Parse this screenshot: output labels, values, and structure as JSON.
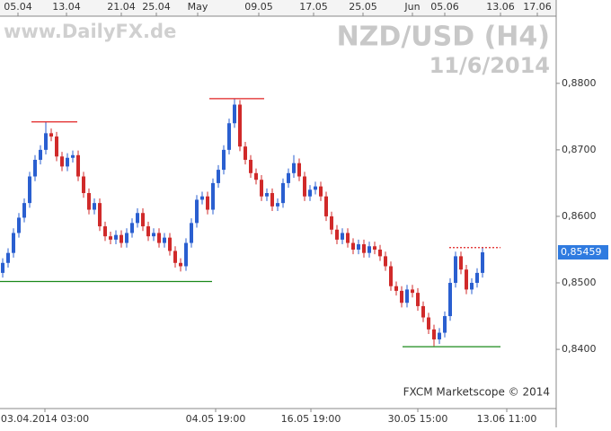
{
  "chart_data": {
    "type": "candlestick",
    "title": "NZD/USD (H4)",
    "subtitle": "11/6/2014",
    "watermark": "www.DailyFX.de",
    "footer": "FXCM Marketscope © 2014",
    "top_axis_labels": [
      "05.04",
      "13.04",
      "21.04",
      "25.04",
      "May",
      "09.05",
      "17.05",
      "25.05",
      "Jun",
      "05.06",
      "13.06",
      "17.06"
    ],
    "bottom_axis_labels": [
      "03.04.2014 03:00",
      "04.05 19:00",
      "16.05 19:00",
      "30.05 15:00",
      "13.06 11:00"
    ],
    "ylim": [
      0.8311,
      0.8901
    ],
    "yticks": [
      {
        "value": 0.88,
        "label": "0,8800"
      },
      {
        "value": 0.87,
        "label": "0,8700"
      },
      {
        "value": 0.86,
        "label": "0,8600"
      },
      {
        "value": 0.85,
        "label": "0,8500"
      },
      {
        "value": 0.84,
        "label": "0,8400"
      }
    ],
    "up_color": "#2a5fd0",
    "down_color": "#d02a2a",
    "last_price": {
      "value": 0.85459,
      "label": "0,85459",
      "color": "#2f7be0"
    },
    "levels": [
      {
        "value": 0.8742,
        "color": "#e02020",
        "style": "solid"
      },
      {
        "value": 0.8777,
        "color": "#e02020",
        "style": "solid"
      },
      {
        "value": 0.8502,
        "color": "#1a8a1a",
        "style": "solid"
      },
      {
        "value": 0.8404,
        "color": "#1a8a1a",
        "style": "solid"
      },
      {
        "value": 0.8553,
        "color": "#e02020",
        "style": "dotted"
      }
    ],
    "open": [
      0.8515,
      0.853,
      0.8545,
      0.8575,
      0.8598,
      0.862,
      0.866,
      0.8685,
      0.87,
      0.8725,
      0.872,
      0.869,
      0.8675,
      0.8688,
      0.8692,
      0.866,
      0.8635,
      0.861,
      0.862,
      0.8585,
      0.857,
      0.8565,
      0.8572,
      0.856,
      0.8575,
      0.859,
      0.8605,
      0.8585,
      0.857,
      0.8575,
      0.856,
      0.8568,
      0.8548,
      0.853,
      0.8525,
      0.856,
      0.859,
      0.8625,
      0.863,
      0.861,
      0.865,
      0.867,
      0.87,
      0.874,
      0.8768,
      0.8705,
      0.8685,
      0.8665,
      0.8655,
      0.863,
      0.8635,
      0.8615,
      0.862,
      0.865,
      0.8665,
      0.868,
      0.866,
      0.863,
      0.864,
      0.8645,
      0.863,
      0.86,
      0.858,
      0.8565,
      0.8575,
      0.856,
      0.855,
      0.8558,
      0.8545,
      0.8555,
      0.855,
      0.854,
      0.8525,
      0.8495,
      0.8488,
      0.847,
      0.849,
      0.8485,
      0.8465,
      0.8448,
      0.843,
      0.8415,
      0.8425,
      0.845,
      0.85,
      0.854,
      0.852,
      0.849,
      0.85,
      0.8515
    ],
    "high": [
      0.8537,
      0.8552,
      0.8582,
      0.8605,
      0.8627,
      0.8667,
      0.8692,
      0.8707,
      0.8742,
      0.8732,
      0.8727,
      0.8697,
      0.8695,
      0.8699,
      0.8699,
      0.8667,
      0.8642,
      0.8627,
      0.8627,
      0.8592,
      0.8577,
      0.8579,
      0.8579,
      0.8582,
      0.8597,
      0.8612,
      0.8612,
      0.8592,
      0.8582,
      0.8582,
      0.8575,
      0.8575,
      0.8555,
      0.8537,
      0.8567,
      0.8597,
      0.8632,
      0.8637,
      0.8637,
      0.8657,
      0.8677,
      0.8707,
      0.8747,
      0.8777,
      0.8775,
      0.8712,
      0.8692,
      0.8672,
      0.8662,
      0.8642,
      0.8642,
      0.8627,
      0.8657,
      0.8672,
      0.8692,
      0.8687,
      0.8667,
      0.8647,
      0.8652,
      0.8652,
      0.8637,
      0.8607,
      0.8587,
      0.8582,
      0.8582,
      0.8567,
      0.8565,
      0.8565,
      0.8562,
      0.8562,
      0.8557,
      0.8547,
      0.8532,
      0.8502,
      0.8495,
      0.8497,
      0.8497,
      0.8492,
      0.8472,
      0.8455,
      0.8437,
      0.8432,
      0.8457,
      0.8507,
      0.8547,
      0.8547,
      0.8527,
      0.8507,
      0.8522,
      0.8553
    ],
    "low": [
      0.8508,
      0.8523,
      0.8538,
      0.8568,
      0.8591,
      0.8613,
      0.8653,
      0.8678,
      0.8693,
      0.8713,
      0.8683,
      0.8668,
      0.8668,
      0.8681,
      0.8653,
      0.8628,
      0.8603,
      0.8603,
      0.8578,
      0.8563,
      0.8558,
      0.8558,
      0.8553,
      0.8553,
      0.8568,
      0.8583,
      0.8578,
      0.8563,
      0.8563,
      0.8553,
      0.8553,
      0.8541,
      0.8523,
      0.8517,
      0.8518,
      0.8553,
      0.8583,
      0.8618,
      0.8603,
      0.8603,
      0.8643,
      0.8663,
      0.8693,
      0.8733,
      0.8698,
      0.8678,
      0.8658,
      0.8648,
      0.8623,
      0.8623,
      0.8608,
      0.8608,
      0.8613,
      0.8643,
      0.8658,
      0.8653,
      0.8623,
      0.8623,
      0.8633,
      0.8623,
      0.8593,
      0.8573,
      0.8558,
      0.8558,
      0.8553,
      0.8543,
      0.8543,
      0.8538,
      0.8538,
      0.8543,
      0.8533,
      0.8518,
      0.8488,
      0.8481,
      0.8463,
      0.8463,
      0.8478,
      0.8458,
      0.8441,
      0.8423,
      0.8405,
      0.8408,
      0.8418,
      0.8443,
      0.8493,
      0.8513,
      0.8483,
      0.8483,
      0.8493,
      0.8508
    ],
    "close": [
      0.853,
      0.8545,
      0.8575,
      0.8598,
      0.862,
      0.866,
      0.8685,
      0.87,
      0.8725,
      0.872,
      0.869,
      0.8675,
      0.8688,
      0.8692,
      0.866,
      0.8635,
      0.861,
      0.862,
      0.8585,
      0.857,
      0.8565,
      0.8572,
      0.856,
      0.8575,
      0.859,
      0.8605,
      0.8585,
      0.857,
      0.8575,
      0.856,
      0.8568,
      0.8548,
      0.853,
      0.8525,
      0.856,
      0.859,
      0.8625,
      0.863,
      0.861,
      0.865,
      0.867,
      0.87,
      0.874,
      0.8768,
      0.8705,
      0.8685,
      0.8665,
      0.8655,
      0.863,
      0.8635,
      0.8615,
      0.862,
      0.865,
      0.8665,
      0.868,
      0.866,
      0.863,
      0.864,
      0.8645,
      0.863,
      0.86,
      0.858,
      0.8565,
      0.8575,
      0.856,
      0.855,
      0.8558,
      0.8545,
      0.8555,
      0.855,
      0.854,
      0.8525,
      0.8495,
      0.8488,
      0.847,
      0.849,
      0.8485,
      0.8465,
      0.8448,
      0.843,
      0.8415,
      0.8425,
      0.845,
      0.85,
      0.854,
      0.852,
      0.849,
      0.85,
      0.8515,
      0.85459
    ]
  }
}
